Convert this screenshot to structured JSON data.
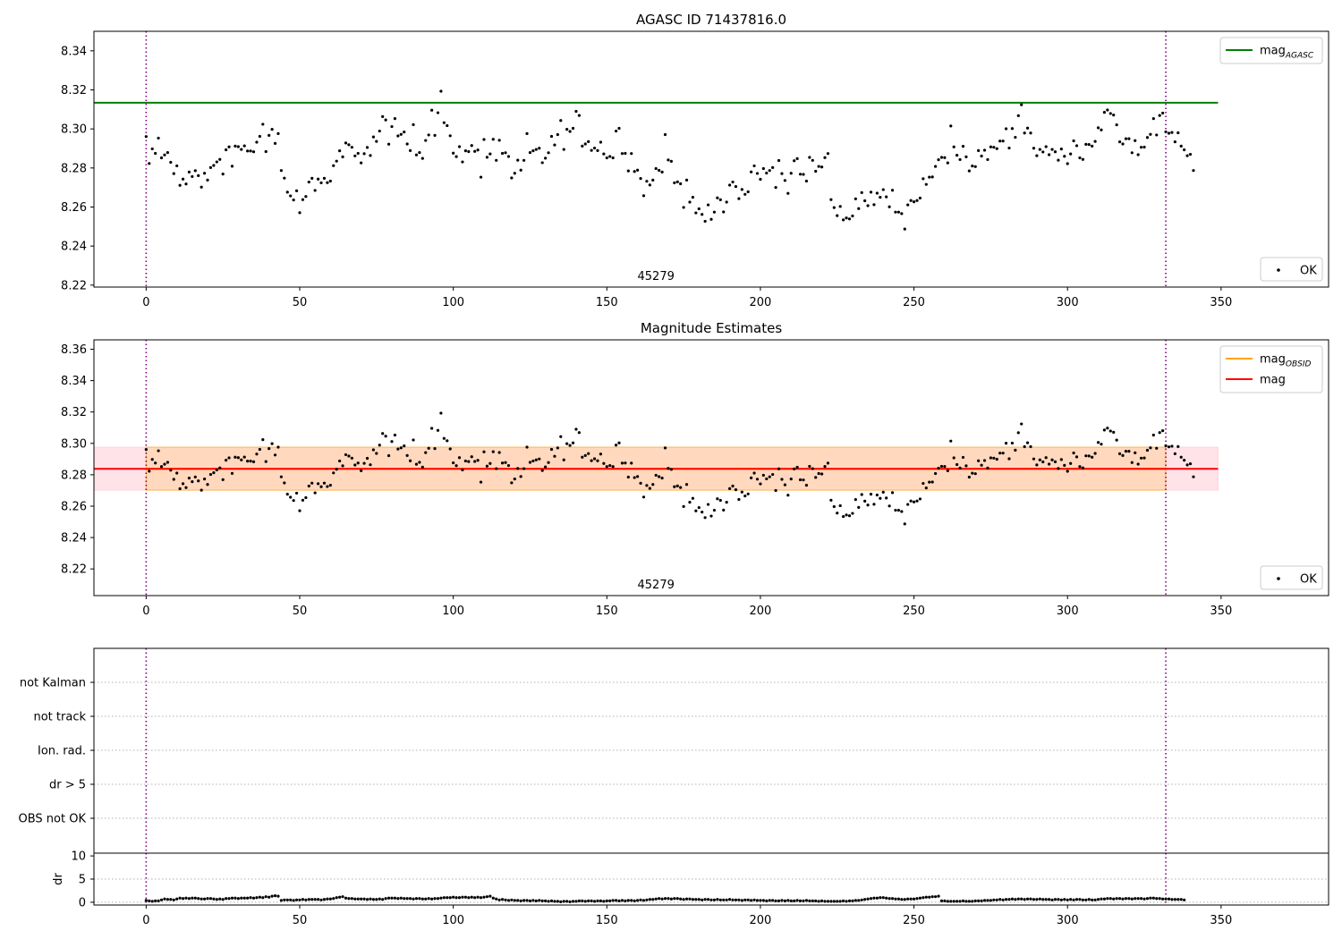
{
  "chart_data": [
    {
      "type": "scatter",
      "title": "AGASC ID 71437816.0",
      "xlim": [
        -17,
        385
      ],
      "ylim": [
        8.219,
        8.35
      ],
      "x_ticks": [
        0,
        50,
        100,
        150,
        200,
        250,
        300,
        350
      ],
      "y_ticks": [
        8.22,
        8.24,
        8.26,
        8.28,
        8.3,
        8.32,
        8.34
      ],
      "obsid_label": "45279",
      "obs_lines": [
        0,
        332
      ],
      "reference_lines": [
        {
          "name": "mag_AGASC",
          "value": 8.3134,
          "x_range": [
            -17,
            349
          ],
          "color": "#008000"
        }
      ],
      "legend_lines": [
        {
          "label": "mag",
          "sub": "AGASC",
          "color": "#008000"
        }
      ],
      "legend_points": [
        {
          "label": "OK"
        }
      ],
      "series": [
        {
          "name": "OK",
          "role": "points"
        }
      ]
    },
    {
      "type": "scatter",
      "title": "Magnitude Estimates",
      "xlim": [
        -17,
        385
      ],
      "ylim": [
        8.203,
        8.366
      ],
      "x_ticks": [
        0,
        50,
        100,
        150,
        200,
        250,
        300,
        350
      ],
      "y_ticks": [
        8.22,
        8.24,
        8.26,
        8.28,
        8.3,
        8.32,
        8.34,
        8.36
      ],
      "obsid_label": "45279",
      "obs_lines": [
        0,
        332
      ],
      "bands": [
        {
          "x_range": [
            -17,
            349
          ],
          "y_range": [
            8.2702,
            8.2976
          ],
          "color": "#ffc0cb",
          "opacity": 0.45
        },
        {
          "x_range": [
            0,
            332
          ],
          "y_range": [
            8.2702,
            8.2976
          ],
          "color": "#ffa500",
          "opacity": 0.18
        }
      ],
      "reference_lines": [
        {
          "name": "mag_OBSID",
          "value": 8.2838,
          "x_range": [
            0,
            332
          ],
          "color": "#ffa500"
        },
        {
          "name": "mag",
          "value": 8.2838,
          "x_range": [
            -17,
            349
          ],
          "color": "#ff0000"
        }
      ],
      "legend_lines": [
        {
          "label": "mag",
          "sub": "OBSID",
          "color": "#ffa500"
        },
        {
          "label": "mag",
          "sub": "",
          "color": "#ff0000"
        }
      ],
      "legend_points": [
        {
          "label": "OK"
        }
      ],
      "series": [
        {
          "name": "OK",
          "role": "points"
        }
      ]
    },
    {
      "type": "scatter",
      "title": "",
      "xlim": [
        -17,
        385
      ],
      "obs_lines": [
        0,
        332
      ],
      "flag_categories": [
        "not Kalman",
        "not track",
        "Ion. rad.",
        "dr > 5",
        "OBS not OK"
      ],
      "flag_points": []
    },
    {
      "type": "scatter",
      "title": "",
      "xlim": [
        -17,
        385
      ],
      "ylim": [
        -0.6,
        10.6
      ],
      "x_ticks": [
        0,
        50,
        100,
        150,
        200,
        250,
        300,
        350
      ],
      "y_ticks": [
        0,
        5,
        10
      ],
      "ylabel": "dr",
      "obs_lines": [
        0,
        332
      ],
      "threshold": 5,
      "series": [
        {
          "name": "dr",
          "role": "points"
        }
      ]
    }
  ],
  "magnitudes": [
    8.2961,
    8.2823,
    8.2898,
    8.2875,
    8.2953,
    8.2852,
    8.2867,
    8.2879,
    8.2829,
    8.2771,
    8.2811,
    8.2711,
    8.2743,
    8.2718,
    8.2779,
    8.2756,
    8.2786,
    8.2761,
    8.2702,
    8.2773,
    8.2738,
    8.2802,
    8.2813,
    8.2831,
    8.2844,
    8.2769,
    8.2893,
    8.2908,
    8.2809,
    8.2912,
    8.2909,
    8.2895,
    8.2913,
    8.2887,
    8.2887,
    8.2883,
    8.2932,
    8.2962,
    8.3024,
    8.2884,
    8.2967,
    8.2998,
    8.2926,
    8.2976,
    8.2787,
    8.2748,
    8.2676,
    8.2657,
    8.2636,
    8.2683,
    8.2571,
    8.2638,
    8.2654,
    8.2728,
    8.2747,
    8.2685,
    8.2743,
    8.2724,
    8.2747,
    8.2725,
    8.2733,
    8.2812,
    8.2835,
    8.2888,
    8.2857,
    8.2928,
    8.2919,
    8.2906,
    8.2862,
    8.2875,
    8.2826,
    8.2873,
    8.2905,
    8.2864,
    8.2959,
    8.2936,
    8.2989,
    8.3063,
    8.3046,
    8.2922,
    8.3012,
    8.3053,
    8.2964,
    8.2972,
    8.2984,
    8.2923,
    8.2889,
    8.3022,
    8.2867,
    8.2879,
    8.2849,
    8.2941,
    8.2969,
    8.3096,
    8.2967,
    8.3083,
    8.3193,
    8.3032,
    8.3017,
    8.2965,
    8.2876,
    8.2858,
    8.2909,
    8.2831,
    8.2888,
    8.2884,
    8.2915,
    8.2885,
    8.2892,
    8.2753,
    8.2946,
    8.2855,
    8.2872,
    8.2947,
    8.2839,
    8.2942,
    8.2875,
    8.2878,
    8.2859,
    8.2749,
    8.2773,
    8.284,
    8.2789,
    8.2839,
    8.2976,
    8.2879,
    8.2888,
    8.2895,
    8.2901,
    8.2827,
    8.285,
    8.2878,
    8.2962,
    8.2918,
    8.2971,
    8.3043,
    8.2895,
    8.2998,
    8.2987,
    8.3003,
    8.309,
    8.3069,
    8.2912,
    8.2923,
    8.2935,
    8.289,
    8.2902,
    8.2889,
    8.2932,
    8.2872,
    8.2852,
    8.2859,
    8.2852,
    8.2989,
    8.3003,
    8.2874,
    8.2875,
    8.2785,
    8.2874,
    8.2782,
    8.2789,
    8.2746,
    8.2658,
    8.2732,
    8.2713,
    8.2738,
    8.2797,
    8.2788,
    8.2779,
    8.2971,
    8.2841,
    8.2834,
    8.2724,
    8.2729,
    8.2719,
    8.2598,
    8.2738,
    8.2625,
    8.265,
    8.257,
    8.2591,
    8.2562,
    8.2527,
    8.2611,
    8.2537,
    8.2574,
    8.2647,
    8.2637,
    8.2575,
    8.2625,
    8.2712,
    8.2728,
    8.2705,
    8.2643,
    8.269,
    8.2665,
    8.2678,
    8.278,
    8.2811,
    8.2772,
    8.2742,
    8.2797,
    8.2774,
    8.2787,
    8.2802,
    8.27,
    8.2838,
    8.2771,
    8.2736,
    8.267,
    8.2773,
    8.2837,
    8.2848,
    8.2768,
    8.2767,
    8.2733,
    8.2854,
    8.2839,
    8.2783,
    8.2808,
    8.2805,
    8.2853,
    8.2874,
    8.2638,
    8.2597,
    8.2556,
    8.2603,
    8.2534,
    8.2544,
    8.2539,
    8.2554,
    8.2642,
    8.2592,
    8.2674,
    8.2632,
    8.2607,
    8.2676,
    8.2612,
    8.2671,
    8.265,
    8.2689,
    8.2652,
    8.2601,
    8.2686,
    8.2574,
    8.2574,
    8.2566,
    8.2487,
    8.2611,
    8.2633,
    8.2627,
    8.2633,
    8.2646,
    8.2745,
    8.2716,
    8.2753,
    8.2754,
    8.2808,
    8.2842,
    8.2854,
    8.2853,
    8.2826,
    8.3015,
    8.2908,
    8.2865,
    8.2843,
    8.2911,
    8.2857,
    8.2785,
    8.281,
    8.2807,
    8.2889,
    8.2861,
    8.2891,
    8.2843,
    8.2908,
    8.2906,
    8.2899,
    8.2938,
    8.2938,
    8.3001,
    8.2902,
    8.3002,
    8.2957,
    8.3068,
    8.3124,
    8.2979,
    8.3004,
    8.2979,
    8.2901,
    8.2863,
    8.2895,
    8.2882,
    8.2909,
    8.2868,
    8.2895,
    8.2883,
    8.284,
    8.2897,
    8.286,
    8.2822,
    8.2872,
    8.2939,
    8.2914,
    8.2852,
    8.2844,
    8.2921,
    8.292,
    8.2912,
    8.2936,
    8.3006,
    8.2995,
    8.3085,
    8.3097,
    8.3079,
    8.3071,
    8.3021,
    8.2934,
    8.2923,
    8.295,
    8.295,
    8.2878,
    8.294,
    8.2868,
    8.2906,
    8.2907,
    8.2956,
    8.2972,
    8.3053,
    8.2969,
    8.3069,
    8.3081,
    8.2985,
    8.2978,
    8.2982,
    8.2934,
    8.298,
    8.2912,
    8.2893,
    8.2863,
    8.287,
    8.2787
  ],
  "dr_values": [
    0.4,
    0.3,
    0.2,
    0.3,
    0.3,
    0.5,
    0.7,
    0.6,
    0.6,
    0.5,
    0.7,
    0.9,
    0.8,
    0.9,
    0.8,
    0.9,
    0.9,
    0.8,
    0.7,
    0.7,
    0.8,
    0.8,
    0.7,
    0.6,
    0.7,
    0.6,
    0.8,
    0.8,
    0.9,
    0.9,
    0.8,
    0.9,
    0.9,
    0.9,
    1.0,
    0.9,
    1.0,
    1.1,
    1.0,
    1.2,
    1.1,
    1.3,
    1.4,
    1.3,
    0.4,
    0.5,
    0.5,
    0.5,
    0.4,
    0.5,
    0.5,
    0.6,
    0.5,
    0.6,
    0.6,
    0.6,
    0.6,
    0.5,
    0.6,
    0.7,
    0.7,
    0.8,
    1.0,
    1.1,
    1.2,
    0.9,
    0.8,
    0.8,
    0.7,
    0.7,
    0.7,
    0.7,
    0.6,
    0.7,
    0.6,
    0.6,
    0.7,
    0.6,
    0.8,
    0.9,
    0.9,
    0.9,
    0.8,
    0.9,
    0.8,
    0.8,
    0.8,
    0.7,
    0.8,
    0.8,
    0.7,
    0.7,
    0.8,
    0.7,
    0.8,
    0.8,
    0.9,
    1.0,
    1.0,
    1.0,
    1.1,
    1.0,
    1.0,
    1.1,
    1.1,
    1.0,
    1.1,
    1.0,
    1.1,
    1.0,
    1.1,
    1.2,
    1.3,
    0.9,
    0.7,
    0.5,
    0.6,
    0.5,
    0.4,
    0.5,
    0.4,
    0.4,
    0.3,
    0.4,
    0.4,
    0.3,
    0.4,
    0.3,
    0.4,
    0.3,
    0.3,
    0.2,
    0.3,
    0.2,
    0.2,
    0.1,
    0.2,
    0.2,
    0.1,
    0.2,
    0.2,
    0.3,
    0.3,
    0.2,
    0.3,
    0.3,
    0.2,
    0.3,
    0.3,
    0.2,
    0.3,
    0.3,
    0.4,
    0.4,
    0.3,
    0.4,
    0.3,
    0.4,
    0.4,
    0.3,
    0.4,
    0.5,
    0.4,
    0.5,
    0.6,
    0.6,
    0.7,
    0.8,
    0.7,
    0.8,
    0.8,
    0.7,
    0.8,
    0.8,
    0.7,
    0.6,
    0.7,
    0.7,
    0.6,
    0.6,
    0.6,
    0.5,
    0.6,
    0.6,
    0.5,
    0.5,
    0.6,
    0.5,
    0.5,
    0.5,
    0.6,
    0.5,
    0.5,
    0.5,
    0.4,
    0.5,
    0.5,
    0.4,
    0.5,
    0.4,
    0.4,
    0.4,
    0.3,
    0.4,
    0.4,
    0.3,
    0.3,
    0.4,
    0.3,
    0.4,
    0.3,
    0.3,
    0.4,
    0.3,
    0.3,
    0.4,
    0.3,
    0.3,
    0.3,
    0.2,
    0.3,
    0.2,
    0.2,
    0.2,
    0.2,
    0.2,
    0.2,
    0.3,
    0.2,
    0.3,
    0.3,
    0.4,
    0.4,
    0.5,
    0.6,
    0.7,
    0.8,
    0.9,
    0.9,
    1.0,
    1.0,
    0.9,
    0.8,
    0.8,
    0.7,
    0.7,
    0.6,
    0.6,
    0.7,
    0.7,
    0.7,
    0.8,
    0.9,
    1.0,
    1.1,
    1.1,
    1.2,
    1.2,
    1.3,
    0.3,
    0.3,
    0.2,
    0.2,
    0.2,
    0.2,
    0.2,
    0.3,
    0.2,
    0.2,
    0.2,
    0.3,
    0.3,
    0.3,
    0.4,
    0.4,
    0.4,
    0.5,
    0.5,
    0.6,
    0.5,
    0.6,
    0.6,
    0.7,
    0.6,
    0.7,
    0.7,
    0.6,
    0.7,
    0.7,
    0.6,
    0.6,
    0.7,
    0.6,
    0.6,
    0.6,
    0.5,
    0.6,
    0.6,
    0.5,
    0.6,
    0.5,
    0.6,
    0.5,
    0.6,
    0.6,
    0.5,
    0.5,
    0.6,
    0.5,
    0.5,
    0.6,
    0.7,
    0.7,
    0.8,
    0.8,
    0.7,
    0.8,
    0.8,
    0.7,
    0.8,
    0.8,
    0.7,
    0.8,
    0.8,
    0.8,
    0.7,
    0.8,
    0.9,
    0.9,
    0.8,
    0.8,
    0.7,
    0.7,
    0.7,
    0.6,
    0.6,
    0.6,
    0.6,
    0.5
  ]
}
